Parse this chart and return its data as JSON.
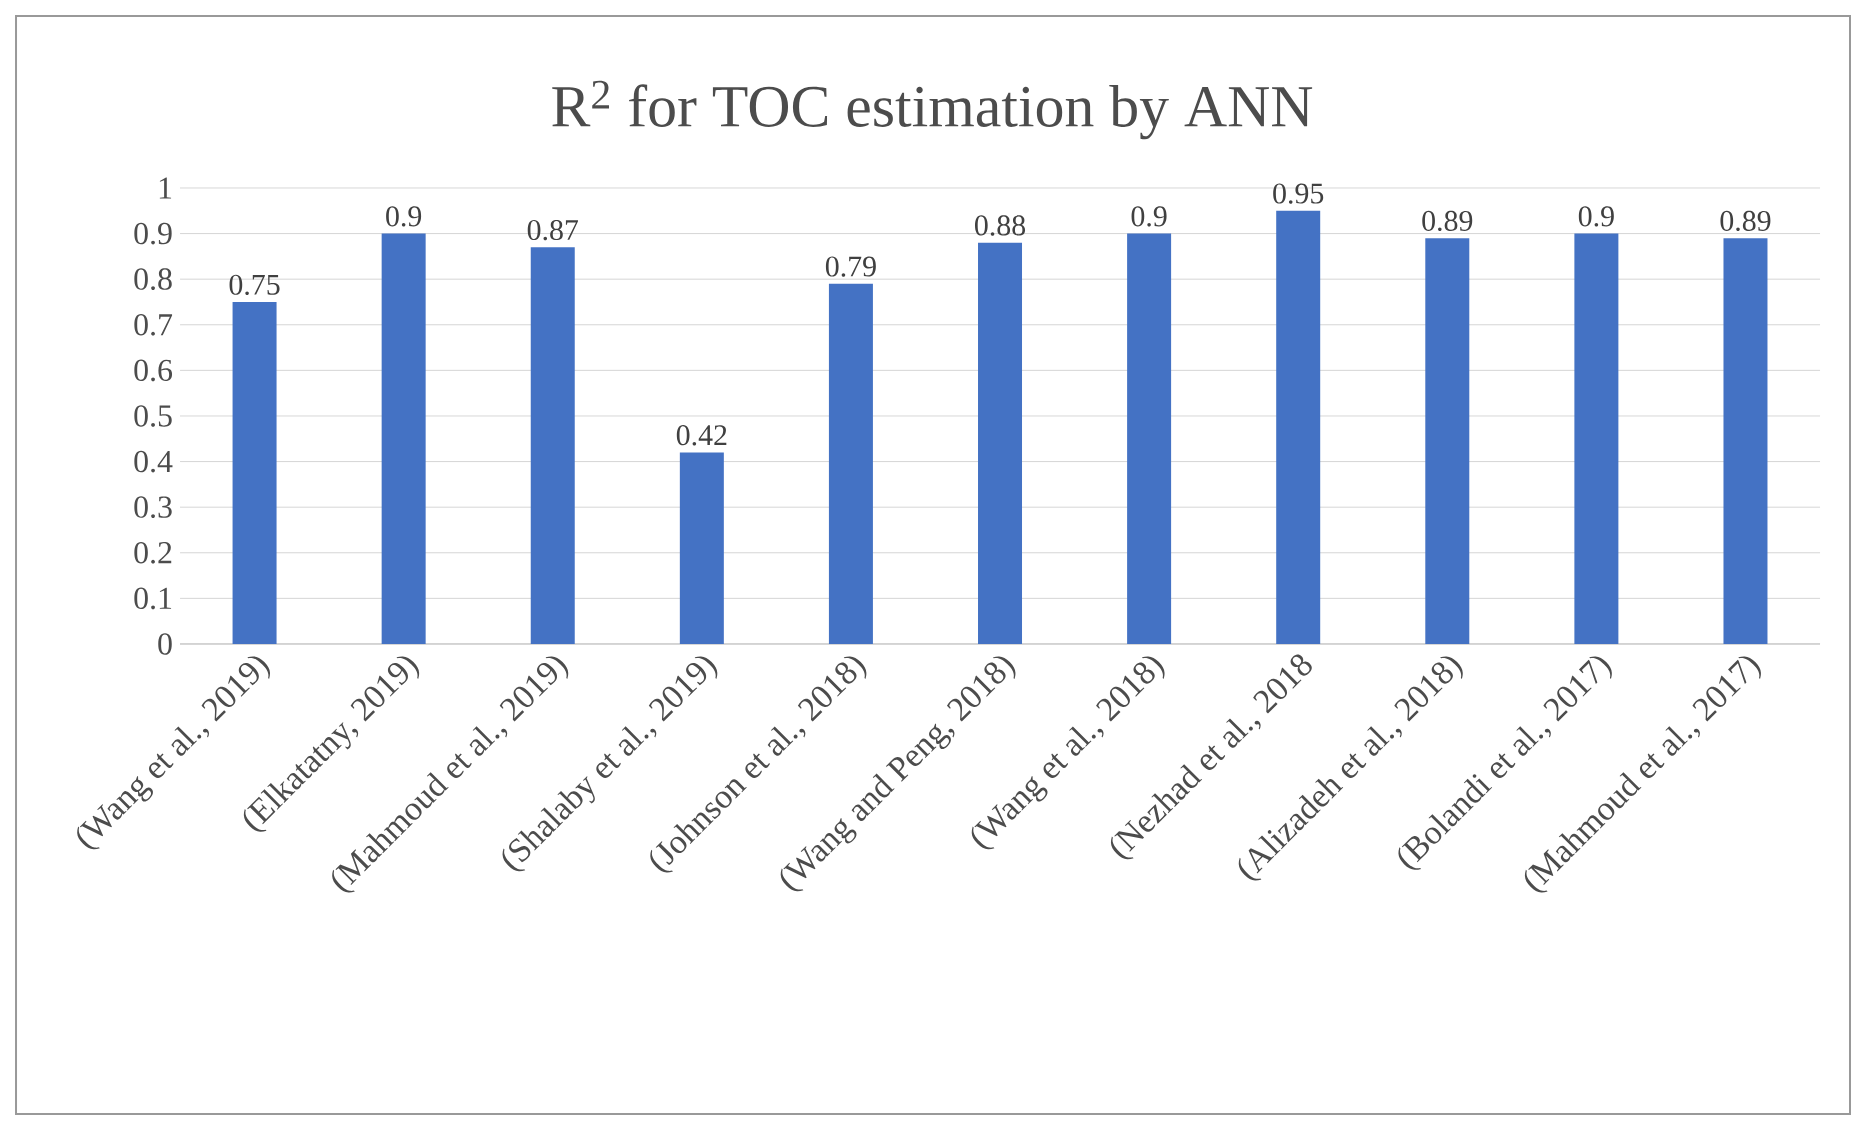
{
  "chart_data": {
    "type": "bar",
    "title": "R$^{2}$ for TOC estimation by ANN",
    "categories": [
      "(Wang et al., 2019)",
      "(Elkatatny, 2019)",
      "(Mahmoud et al., 2019)",
      "(Shalaby et al., 2019)",
      "(Johnson et al., 2018)",
      "(Wang and Peng, 2018)",
      "(Wang et al., 2018)",
      "(Nezhad et al., 2018",
      "(Alizadeh et al., 2018)",
      "(Bolandi et al., 2017)",
      "(Mahmoud et al., 2017)"
    ],
    "values": [
      0.75,
      0.9,
      0.87,
      0.42,
      0.79,
      0.88,
      0.9,
      0.95,
      0.89,
      0.9,
      0.89
    ],
    "color": "#4472c4",
    "ylim": [
      0,
      1
    ],
    "yticks": [
      0,
      0.1,
      0.2,
      0.3,
      0.4,
      0.5,
      0.6,
      0.7,
      0.8,
      0.9,
      1
    ],
    "grid": "y",
    "data_labels": true
  }
}
